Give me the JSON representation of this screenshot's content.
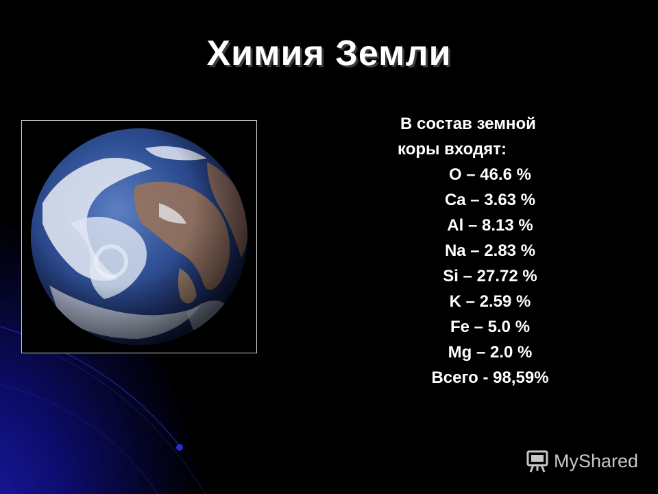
{
  "slide": {
    "title": "Химия Земли",
    "intro_line1": "В состав земной",
    "intro_line2": "коры входят:",
    "elements": [
      "O – 46.6 %",
      "Ca – 3.63 %",
      "Al – 8.13 %",
      "Na – 2.83 %",
      "Si – 27.72 %",
      "K – 2.59 %",
      "Fe – 5.0 %",
      "Mg – 2.0 %"
    ],
    "total": "Всего - 98,59%"
  },
  "watermark": {
    "text": "MyShared",
    "icon": "presentation-screen-icon"
  },
  "colors": {
    "background": "#000000",
    "accent_blue": "#1a1aa8",
    "text": "#ffffff"
  }
}
